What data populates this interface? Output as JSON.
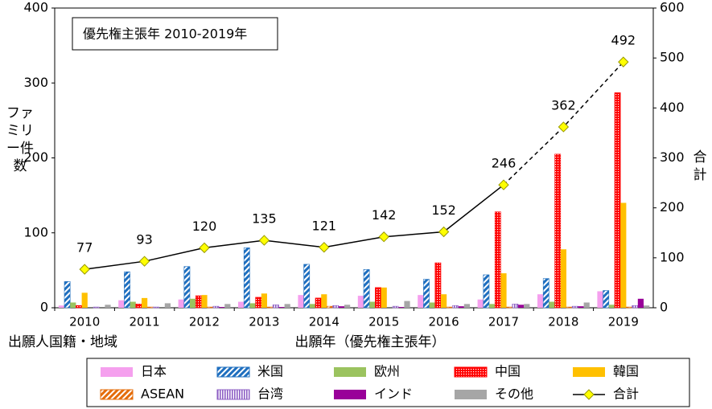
{
  "chart_data": {
    "type": "bar",
    "title": "優先権主張年 2010-2019年",
    "y_label": "ファミリー件数",
    "y2_label": "合計",
    "x_label": "出願年（優先権主張年）",
    "legend_title": "出願人国籍・地域",
    "categories": [
      "2010",
      "2011",
      "2012",
      "2013",
      "2014",
      "2015",
      "2016",
      "2017",
      "2018",
      "2019"
    ],
    "ylim": [
      0,
      400
    ],
    "yticks": [
      0,
      100,
      200,
      300,
      400
    ],
    "y2lim": [
      0,
      600
    ],
    "y2ticks": [
      0,
      100,
      200,
      300,
      400,
      500,
      600
    ],
    "series": [
      {
        "name": "日本",
        "color": "#f5a0ee",
        "values": [
          3,
          10,
          11,
          8,
          17,
          16,
          17,
          11,
          18,
          22
        ]
      },
      {
        "name": "米国",
        "color": "#1f6fbf",
        "pattern": "diagonal",
        "values": [
          35,
          48,
          55,
          80,
          58,
          51,
          38,
          44,
          39,
          23
        ]
      },
      {
        "name": "欧州",
        "color": "#9bc35f",
        "values": [
          7,
          8,
          12,
          6,
          5,
          8,
          7,
          5,
          8,
          4
        ]
      },
      {
        "name": "中国",
        "color": "#ff0000",
        "pattern": "grid",
        "values": [
          3,
          5,
          16,
          14,
          13,
          27,
          60,
          128,
          205,
          287
        ]
      },
      {
        "name": "韓国",
        "color": "#ffc000",
        "values": [
          20,
          13,
          17,
          19,
          18,
          27,
          18,
          46,
          78,
          140
        ]
      },
      {
        "name": "ASEAN",
        "color": "#e46c0a",
        "pattern": "diagonal",
        "values": [
          0,
          1,
          1,
          1,
          2,
          0,
          1,
          1,
          1,
          1
        ]
      },
      {
        "name": "台湾",
        "color": "#8e5fc4",
        "pattern": "vertical",
        "values": [
          1,
          1,
          2,
          4,
          3,
          2,
          3,
          5,
          2,
          3
        ]
      },
      {
        "name": "インド",
        "color": "#990099",
        "values": [
          0,
          0,
          1,
          1,
          2,
          1,
          2,
          4,
          2,
          12
        ]
      },
      {
        "name": "その他",
        "color": "#a6a6a6",
        "values": [
          4,
          6,
          5,
          5,
          4,
          9,
          5,
          5,
          7,
          3
        ]
      },
      {
        "name": "合計",
        "color": "#ffff00",
        "type": "line",
        "axis": "y2",
        "dashed_from": "2017",
        "values": [
          77,
          93,
          120,
          135,
          121,
          142,
          152,
          246,
          362,
          492
        ]
      }
    ]
  }
}
